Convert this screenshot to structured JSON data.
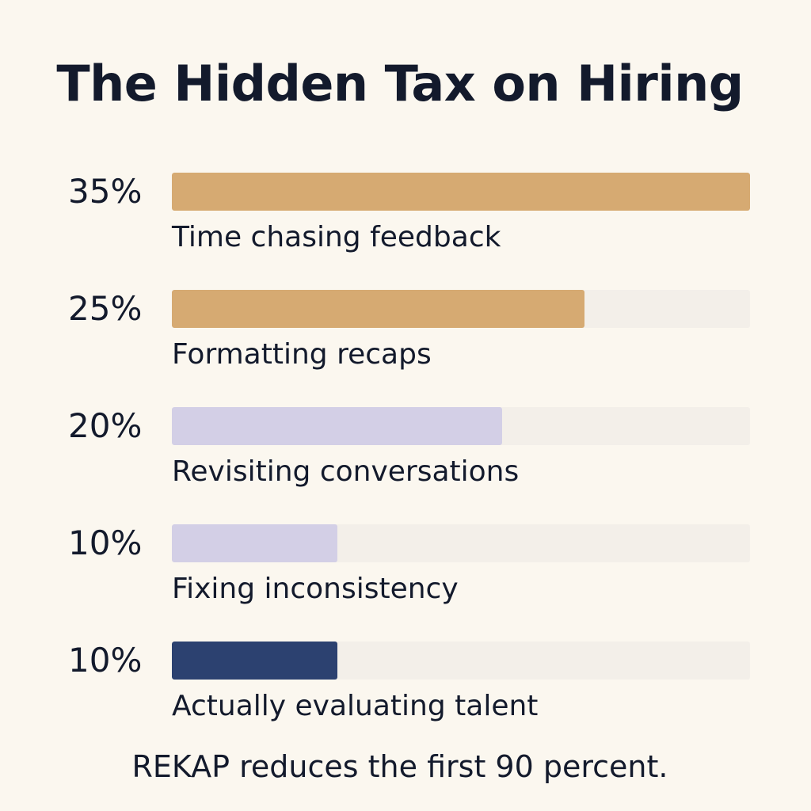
{
  "title": "The Hidden Tax on Hiring",
  "footer": "REKAP reduces the first 90 percent.",
  "chart_data": {
    "type": "bar",
    "orientation": "horizontal",
    "xlim": [
      0,
      35
    ],
    "categories": [
      "Time chasing feedback",
      "Formatting recaps",
      "Revisiting conversations",
      "Fixing inconsistency",
      "Actually evaluating talent"
    ],
    "values": [
      35,
      25,
      20,
      10,
      10
    ],
    "value_labels": [
      "35%",
      "25%",
      "20%",
      "10%",
      "10%"
    ],
    "colors": [
      "#d6aa72",
      "#d6aa72",
      "#d3cfe6",
      "#d3cfe6",
      "#2c4170"
    ],
    "track_color": "#f3efe9",
    "grid": false,
    "legend": "none"
  }
}
